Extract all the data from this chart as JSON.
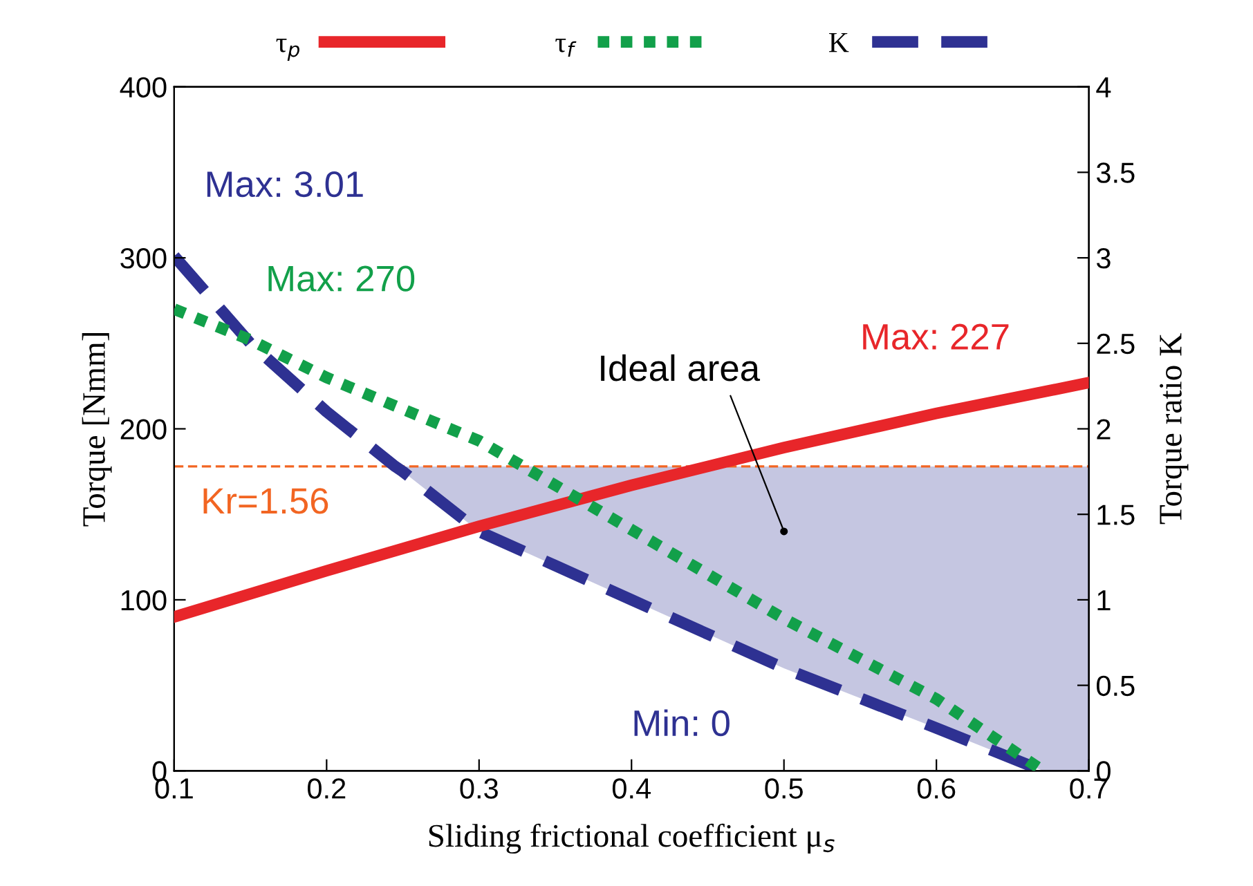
{
  "chart_data": {
    "type": "line",
    "xlabel": "Sliding frictional coefficient μ$_{s}$",
    "ylabel": "Torque [Nmm]",
    "y2label": "Torque ratio K",
    "xlim": [
      0.1,
      0.7
    ],
    "xticks": [
      0.1,
      0.2,
      0.3,
      0.4,
      0.5,
      0.6,
      0.7
    ],
    "ylim": [
      0,
      400
    ],
    "yticks": [
      0,
      100,
      200,
      300,
      400
    ],
    "y2lim": [
      0,
      4
    ],
    "y2ticks": [
      0,
      0.5,
      1,
      1.5,
      2,
      2.5,
      3,
      3.5,
      4
    ],
    "grid": false,
    "legend": "top",
    "marker": "none",
    "series": [
      {
        "name": "τ$_{p}$",
        "color": "#e8262a",
        "line_style": "solid",
        "x": [
          0.1,
          0.2,
          0.3,
          0.4,
          0.5,
          0.6,
          0.7
        ],
        "values": [
          90,
          117,
          143,
          167,
          189,
          209,
          227
        ]
      },
      {
        "name": "τ$_{f}$",
        "color": "#12a04a",
        "line_style": "dotted",
        "x": [
          0.1,
          0.15,
          0.2,
          0.3,
          0.4,
          0.5,
          0.6,
          0.67
        ],
        "values": [
          270,
          252,
          230,
          193,
          141,
          89,
          42,
          0
        ]
      },
      {
        "name": "K",
        "color": "#2e3192",
        "line_style": "dashed",
        "axis": "y2",
        "x": [
          0.1,
          0.15,
          0.2,
          0.245,
          0.25,
          0.3,
          0.35,
          0.4,
          0.5,
          0.6,
          0.67,
          0.7
        ],
        "values": [
          3.01,
          2.5,
          2.1,
          1.78,
          1.75,
          1.4,
          1.2,
          1.0,
          0.6,
          0.25,
          0,
          null
        ],
        "lower": [
          null,
          null,
          null,
          1.78,
          1.75,
          1.4,
          1.2,
          1.0,
          0.6,
          0.25,
          0,
          0
        ],
        "upper": [
          null,
          null,
          null,
          1.78,
          1.78,
          1.78,
          1.78,
          1.78,
          1.78,
          1.78,
          1.78,
          1.78
        ]
      }
    ],
    "ref_lines": [
      {
        "axis": "y2",
        "value": 1.78,
        "color": "#f26522",
        "line_style": "dashed"
      }
    ],
    "annotations": [
      "Max: 3.01",
      "Max: 270",
      "Max: 227",
      "Min: 0",
      {
        "text": "Ideal area",
        "x": 0.5,
        "y": 140
      },
      "Kr=1.56"
    ]
  }
}
